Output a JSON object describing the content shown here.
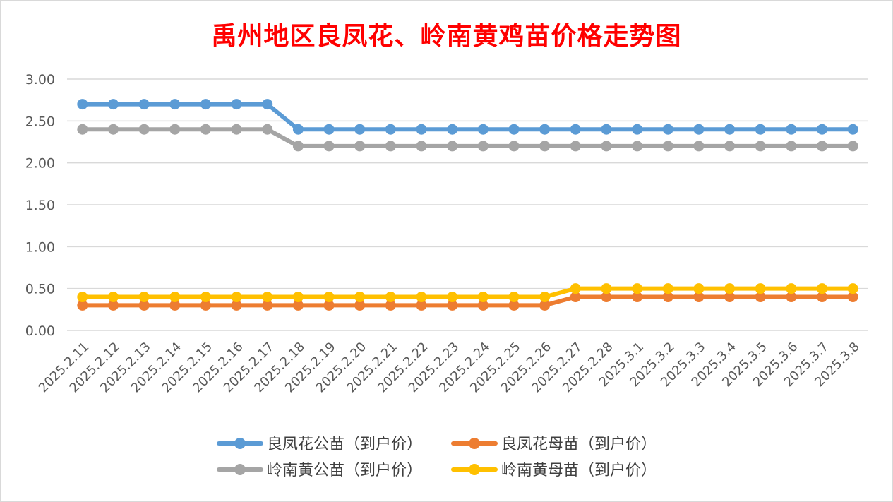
{
  "chart_data": {
    "type": "line",
    "title": "禹州地区良凤花、岭南黄鸡苗价格走势图",
    "title_color": "#ff0000",
    "xlabel": "",
    "ylabel": "",
    "ylim": [
      0,
      3
    ],
    "y_ticks": [
      "0.00",
      "0.50",
      "1.00",
      "1.50",
      "2.00",
      "2.50",
      "3.00"
    ],
    "y_tick_values": [
      0,
      0.5,
      1,
      1.5,
      2,
      2.5,
      3
    ],
    "grid": true,
    "legend_position": "bottom",
    "categories": [
      "2025.2.11",
      "2025.2.12",
      "2025.2.13",
      "2025.2.14",
      "2025.2.15",
      "2025.2.16",
      "2025.2.17",
      "2025.2.18",
      "2025.2.19",
      "2025.2.20",
      "2025.2.21",
      "2025.2.22",
      "2025.2.23",
      "2025.2.24",
      "2025.2.25",
      "2025.2.26",
      "2025.2.27",
      "2025.2.28",
      "2025.3.1",
      "2025.3.2",
      "2025.3.3",
      "2025.3.4",
      "2025.3.5",
      "2025.3.6",
      "2025.3.7",
      "2025.3.8"
    ],
    "series": [
      {
        "name": "良凤花公苗（到户价）",
        "color": "#5b9bd5",
        "values": [
          2.7,
          2.7,
          2.7,
          2.7,
          2.7,
          2.7,
          2.7,
          2.4,
          2.4,
          2.4,
          2.4,
          2.4,
          2.4,
          2.4,
          2.4,
          2.4,
          2.4,
          2.4,
          2.4,
          2.4,
          2.4,
          2.4,
          2.4,
          2.4,
          2.4,
          2.4
        ]
      },
      {
        "name": "良凤花母苗（到户价）",
        "color": "#ed7d31",
        "values": [
          0.3,
          0.3,
          0.3,
          0.3,
          0.3,
          0.3,
          0.3,
          0.3,
          0.3,
          0.3,
          0.3,
          0.3,
          0.3,
          0.3,
          0.3,
          0.3,
          0.4,
          0.4,
          0.4,
          0.4,
          0.4,
          0.4,
          0.4,
          0.4,
          0.4,
          0.4
        ]
      },
      {
        "name": "岭南黄公苗（到户价）",
        "color": "#a5a5a5",
        "values": [
          2.4,
          2.4,
          2.4,
          2.4,
          2.4,
          2.4,
          2.4,
          2.2,
          2.2,
          2.2,
          2.2,
          2.2,
          2.2,
          2.2,
          2.2,
          2.2,
          2.2,
          2.2,
          2.2,
          2.2,
          2.2,
          2.2,
          2.2,
          2.2,
          2.2,
          2.2
        ]
      },
      {
        "name": "岭南黄母苗（到户价）",
        "color": "#ffc000",
        "values": [
          0.4,
          0.4,
          0.4,
          0.4,
          0.4,
          0.4,
          0.4,
          0.4,
          0.4,
          0.4,
          0.4,
          0.4,
          0.4,
          0.4,
          0.4,
          0.4,
          0.5,
          0.5,
          0.5,
          0.5,
          0.5,
          0.5,
          0.5,
          0.5,
          0.5,
          0.5
        ]
      }
    ],
    "draw_order": [
      2,
      0,
      1,
      3
    ]
  }
}
